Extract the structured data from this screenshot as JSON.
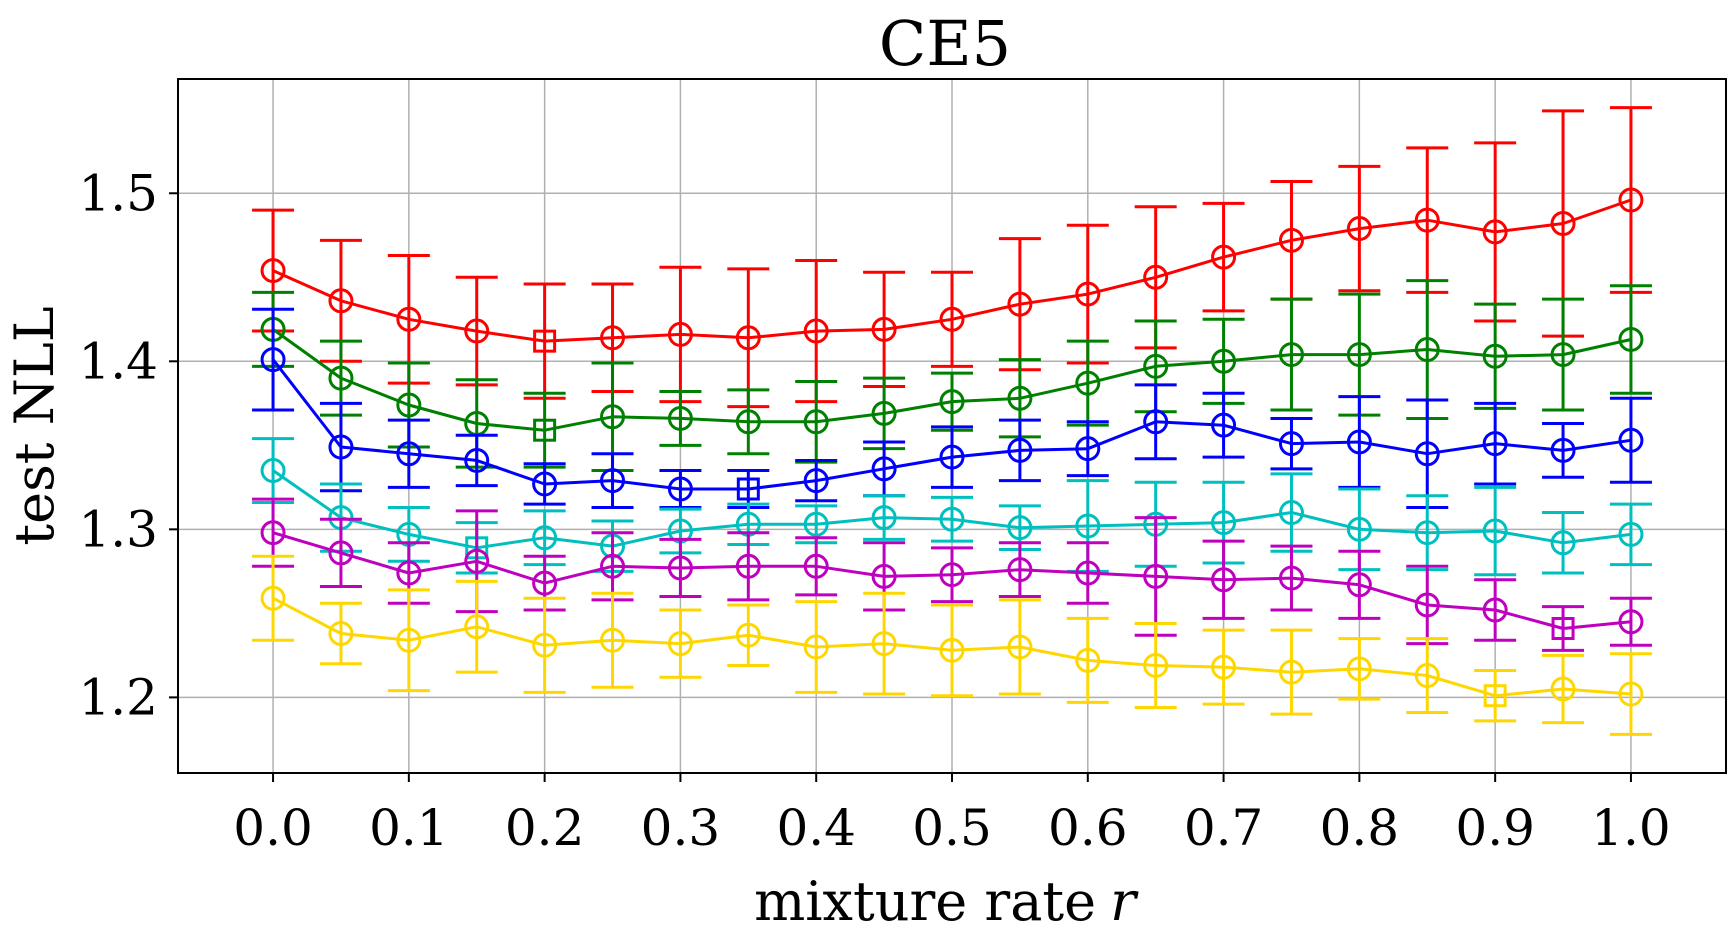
{
  "chart_data": {
    "type": "line",
    "title": "CE5",
    "xlabel": "mixture rate",
    "xlabel_var": "r",
    "ylabel": "test NLL",
    "xlim": [
      -0.07,
      1.07
    ],
    "ylim": [
      1.155,
      1.568
    ],
    "grid": true,
    "xticks": [
      "0.0",
      "0.1",
      "0.2",
      "0.3",
      "0.4",
      "0.5",
      "0.6",
      "0.7",
      "0.8",
      "0.9",
      "1.0"
    ],
    "yticks": [
      "1.2",
      "1.3",
      "1.4",
      "1.5"
    ],
    "x": [
      0.0,
      0.05,
      0.1,
      0.15,
      0.2,
      0.25,
      0.3,
      0.35,
      0.4,
      0.45,
      0.5,
      0.55,
      0.6,
      0.65,
      0.7,
      0.75,
      0.8,
      0.85,
      0.9,
      0.95,
      1.0
    ],
    "series": [
      {
        "color": "#ff0000",
        "best_index": 4,
        "values": [
          1.454,
          1.436,
          1.425,
          1.418,
          1.412,
          1.414,
          1.416,
          1.414,
          1.418,
          1.419,
          1.425,
          1.434,
          1.44,
          1.45,
          1.462,
          1.472,
          1.479,
          1.484,
          1.477,
          1.482,
          1.496
        ],
        "err": [
          0.036,
          0.036,
          0.038,
          0.032,
          0.034,
          0.032,
          0.04,
          0.041,
          0.042,
          0.034,
          0.028,
          0.039,
          0.041,
          0.042,
          0.032,
          0.035,
          0.037,
          0.043,
          0.053,
          0.067,
          0.055
        ]
      },
      {
        "color": "#008000",
        "best_index": 4,
        "values": [
          1.419,
          1.39,
          1.374,
          1.363,
          1.359,
          1.367,
          1.366,
          1.364,
          1.364,
          1.369,
          1.376,
          1.378,
          1.387,
          1.397,
          1.4,
          1.404,
          1.404,
          1.407,
          1.403,
          1.404,
          1.413
        ],
        "err": [
          0.022,
          0.022,
          0.025,
          0.026,
          0.022,
          0.032,
          0.016,
          0.019,
          0.024,
          0.021,
          0.017,
          0.023,
          0.025,
          0.027,
          0.025,
          0.033,
          0.036,
          0.041,
          0.031,
          0.033,
          0.032
        ]
      },
      {
        "color": "#0000ff",
        "best_index": 7,
        "values": [
          1.401,
          1.349,
          1.345,
          1.341,
          1.327,
          1.329,
          1.324,
          1.324,
          1.329,
          1.336,
          1.343,
          1.347,
          1.348,
          1.364,
          1.362,
          1.351,
          1.352,
          1.345,
          1.351,
          1.347,
          1.353
        ],
        "err": [
          0.03,
          0.026,
          0.02,
          0.015,
          0.012,
          0.016,
          0.011,
          0.011,
          0.012,
          0.016,
          0.018,
          0.018,
          0.016,
          0.022,
          0.019,
          0.015,
          0.027,
          0.032,
          0.024,
          0.016,
          0.025
        ]
      },
      {
        "color": "#00bfbf",
        "best_index": 3,
        "values": [
          1.335,
          1.307,
          1.297,
          1.289,
          1.295,
          1.29,
          1.299,
          1.303,
          1.303,
          1.307,
          1.306,
          1.301,
          1.302,
          1.303,
          1.304,
          1.31,
          1.3,
          1.298,
          1.299,
          1.292,
          1.297
        ],
        "err": [
          0.019,
          0.02,
          0.016,
          0.015,
          0.016,
          0.015,
          0.013,
          0.012,
          0.011,
          0.013,
          0.013,
          0.013,
          0.027,
          0.025,
          0.024,
          0.023,
          0.024,
          0.022,
          0.026,
          0.018,
          0.018
        ]
      },
      {
        "color": "#bf00bf",
        "best_index": 19,
        "values": [
          1.298,
          1.286,
          1.274,
          1.281,
          1.268,
          1.278,
          1.277,
          1.278,
          1.278,
          1.272,
          1.273,
          1.276,
          1.274,
          1.272,
          1.27,
          1.271,
          1.267,
          1.255,
          1.252,
          1.241,
          1.245
        ],
        "err": [
          0.02,
          0.02,
          0.018,
          0.03,
          0.016,
          0.02,
          0.017,
          0.02,
          0.017,
          0.02,
          0.016,
          0.016,
          0.018,
          0.035,
          0.023,
          0.019,
          0.02,
          0.023,
          0.018,
          0.013,
          0.014
        ]
      },
      {
        "color": "#ffd700",
        "best_index": 18,
        "values": [
          1.259,
          1.238,
          1.234,
          1.242,
          1.231,
          1.234,
          1.232,
          1.237,
          1.23,
          1.232,
          1.228,
          1.23,
          1.222,
          1.219,
          1.218,
          1.215,
          1.217,
          1.213,
          1.201,
          1.205,
          1.202
        ],
        "err": [
          0.025,
          0.018,
          0.03,
          0.027,
          0.028,
          0.028,
          0.02,
          0.018,
          0.027,
          0.03,
          0.027,
          0.028,
          0.025,
          0.025,
          0.022,
          0.025,
          0.018,
          0.022,
          0.015,
          0.02,
          0.024
        ]
      }
    ]
  }
}
